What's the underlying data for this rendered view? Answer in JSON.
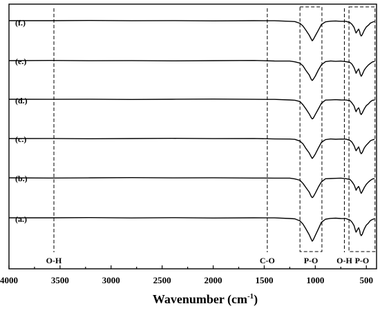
{
  "chart_data": {
    "type": "line",
    "title": "",
    "xlabel": "Wavenumber (cm",
    "xlabel_sup": "-1",
    "xlabel_close": ")",
    "ylabel": "",
    "xlim": [
      4000,
      400
    ],
    "x_reversed": true,
    "x_ticks": [
      4000,
      3500,
      3000,
      2500,
      2000,
      1500,
      1000,
      500
    ],
    "y_ticks_visible": false,
    "grid": false,
    "stacked_offsets": true,
    "series": [
      {
        "name": "(a.)"
      },
      {
        "name": "(b.)"
      },
      {
        "name": "(c.)"
      },
      {
        "name": "(d.)"
      },
      {
        "name": "(e.)"
      },
      {
        "name": "(f.)"
      }
    ],
    "bands": {
      "x": [
        4000,
        3600,
        3200,
        2800,
        2400,
        2000,
        1600,
        1400,
        1250,
        1200,
        1150,
        1120,
        1090,
        1060,
        1040,
        1030,
        1020,
        1000,
        970,
        940,
        900,
        850,
        800,
        750,
        700,
        660,
        640,
        620,
        605,
        600,
        590,
        575,
        565,
        560,
        550,
        540,
        520,
        500,
        480,
        460,
        440,
        420
      ],
      "transmittance": [
        1.0,
        1.0,
        1.0,
        1.0,
        1.0,
        1.0,
        1.0,
        0.99,
        0.98,
        0.96,
        0.9,
        0.78,
        0.6,
        0.42,
        0.26,
        0.2,
        0.24,
        0.38,
        0.62,
        0.84,
        0.96,
        0.98,
        0.98,
        0.98,
        0.97,
        0.93,
        0.85,
        0.72,
        0.55,
        0.5,
        0.58,
        0.66,
        0.55,
        0.45,
        0.38,
        0.44,
        0.62,
        0.74,
        0.82,
        0.9,
        0.95,
        0.97
      ]
    },
    "reference_lines": [
      {
        "x": 3560,
        "label": "O-H"
      },
      {
        "x": 1470,
        "label": "C-O"
      },
      {
        "x": 715,
        "label": "O-H"
      }
    ],
    "band_boxes": [
      {
        "x_from": 1150,
        "x_to": 935,
        "label": "P-O"
      },
      {
        "x_from": 670,
        "x_to": 415,
        "label": "P-O"
      }
    ]
  }
}
